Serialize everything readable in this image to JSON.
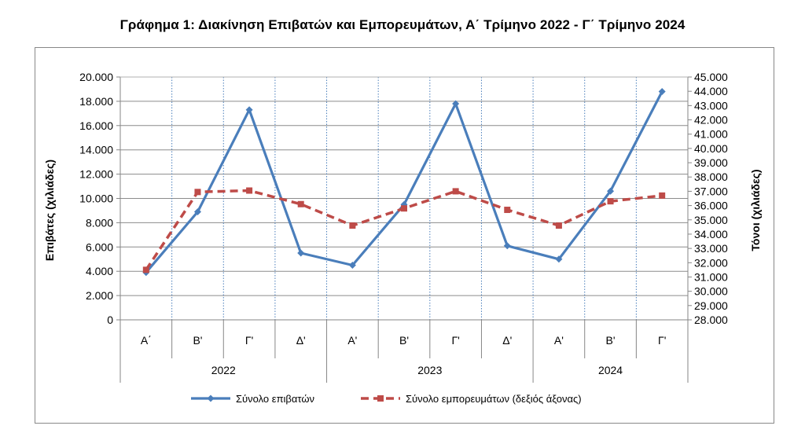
{
  "chart_data": {
    "type": "line",
    "title": "Γράφημα 1: Διακίνηση Επιβατών και Εμπορευμάτων, Α΄ Τρίμηνο 2022 - Γ΄ Τρίμηνο 2024",
    "categories": [
      "Α΄",
      "Β'",
      "Γ'",
      "Δ'",
      "Α'",
      "Β'",
      "Γ'",
      "Δ'",
      "Α'",
      "Β'",
      "Γ'"
    ],
    "years": [
      {
        "label": "2022",
        "count": 4
      },
      {
        "label": "2023",
        "count": 4
      },
      {
        "label": "2024",
        "count": 3
      }
    ],
    "ylabel": "Επιβάτες  (χιλιάδες)",
    "y2label": "Τόνοι  (χιλιάδες)",
    "ylim": [
      0,
      20000
    ],
    "y2lim": [
      28000,
      45000
    ],
    "yticks": [
      "0",
      "2.000",
      "4.000",
      "6.000",
      "8.000",
      "10.000",
      "12.000",
      "14.000",
      "16.000",
      "18.000",
      "20.000"
    ],
    "y2ticks": [
      "28.000",
      "29.000",
      "30.000",
      "31.000",
      "32.000",
      "33.000",
      "34.000",
      "35.000",
      "36.000",
      "37.000",
      "38.000",
      "39.000",
      "40.000",
      "41.000",
      "42.000",
      "43.000",
      "44.000",
      "45.000"
    ],
    "grid": true,
    "legend_position": "bottom",
    "series": [
      {
        "name": "Σύνολο επιβατών",
        "axis": "left",
        "color": "#4a7ebb",
        "style": "solid",
        "marker": "diamond",
        "values": [
          3900,
          8900,
          17300,
          5500,
          4500,
          9500,
          17800,
          6100,
          5000,
          10600,
          18800
        ]
      },
      {
        "name": "Σύνολο εμπορευμάτων (δεξιός άξονας)",
        "axis": "right",
        "color": "#be4b48",
        "style": "dashed",
        "marker": "square",
        "values": [
          31500,
          36950,
          37050,
          36100,
          34600,
          35800,
          37000,
          35700,
          34600,
          36300,
          36700
        ]
      }
    ]
  }
}
